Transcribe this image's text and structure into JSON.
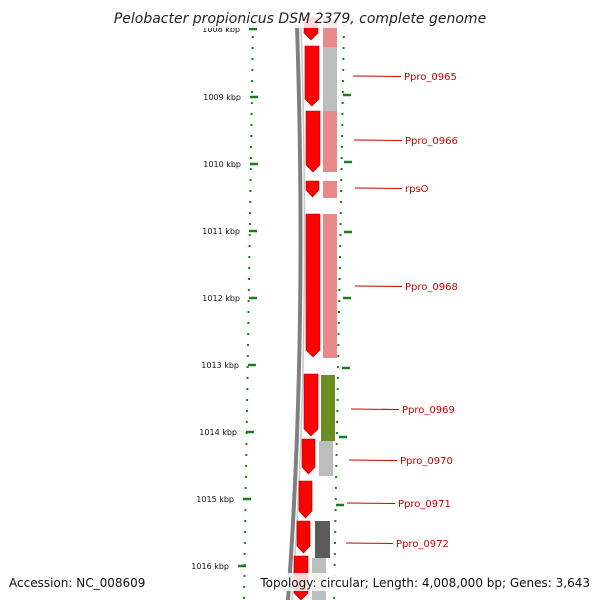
{
  "title": "Pelobacter propionicus DSM 2379, complete genome",
  "footer": {
    "accession": "Accession: NC_008609",
    "topology": "Topology: circular; Length: 4,008,000 bp; Genes: 3,643"
  },
  "ruler": [
    {
      "label": "1008 kbp"
    },
    {
      "label": "1009 kbp"
    },
    {
      "label": "1010 kbp"
    },
    {
      "label": "1011 kbp"
    },
    {
      "label": "1012 kbp"
    },
    {
      "label": "1013 kbp"
    },
    {
      "label": "1014 kbp"
    },
    {
      "label": "1015 kbp"
    },
    {
      "label": "1016 kbp"
    }
  ],
  "genes": [
    {
      "label": "Ppro_0965"
    },
    {
      "label": "Ppro_0966"
    },
    {
      "label": "rpsO"
    },
    {
      "label": "Ppro_0968"
    },
    {
      "label": "Ppro_0969"
    },
    {
      "label": "Ppro_0970"
    },
    {
      "label": "Ppro_0971"
    },
    {
      "label": "Ppro_0972"
    }
  ],
  "colors": {
    "backbone": "#808080",
    "cds_arrow": "#ff0000",
    "feature_light_red": "#e88a8a",
    "feature_gray": "#bdbdbd",
    "feature_green": "#6b8e23",
    "feature_dark_gray": "#5a5a5a",
    "tick_green": "#1a7f1a",
    "label_red": "#cc0000"
  }
}
